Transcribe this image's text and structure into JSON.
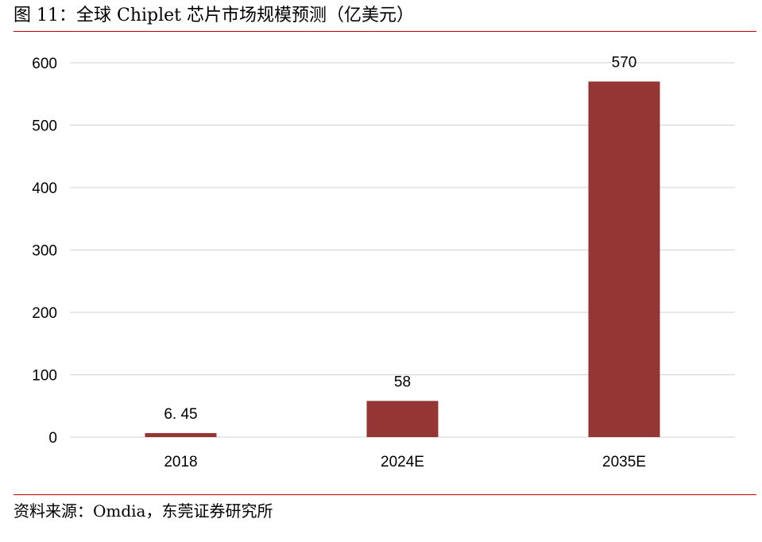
{
  "figure": {
    "title": "图 11：全球 Chiplet 芯片市场规模预测（亿美元）",
    "source": "资料来源：Omdia，东莞证券研究所",
    "accent_color": "#c00000"
  },
  "chart_data": {
    "type": "bar",
    "categories": [
      "2018",
      "2024E",
      "2035E"
    ],
    "values": [
      6.45,
      58,
      570
    ],
    "data_labels": [
      "6. 45",
      "58",
      "570"
    ],
    "ylim": [
      0,
      600
    ],
    "yticks": [
      0,
      100,
      200,
      300,
      400,
      500,
      600
    ],
    "grid": true,
    "legend": "none",
    "bar_color": "#943634",
    "grid_color": "#d9d9d9"
  }
}
